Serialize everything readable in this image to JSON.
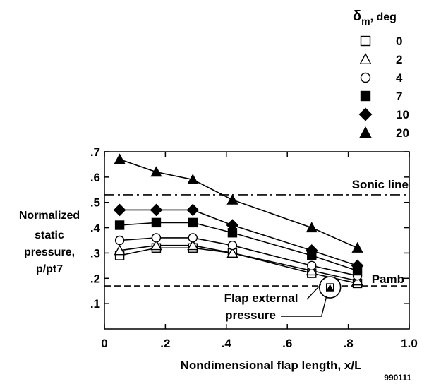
{
  "chart_data": {
    "type": "line",
    "title": "",
    "xlabel": "Nondimensional flap length, x/L",
    "ylabel_lines": [
      "Normalized",
      "static",
      "pressure,",
      "p/pt7"
    ],
    "xlim": [
      0,
      1.0
    ],
    "ylim": [
      0,
      0.7
    ],
    "x_ticks": [
      {
        "v": 0,
        "label": "0"
      },
      {
        "v": 0.2,
        "label": ".2"
      },
      {
        "v": 0.4,
        "label": ".4"
      },
      {
        "v": 0.6,
        "label": ".6"
      },
      {
        "v": 0.8,
        "label": ".8"
      },
      {
        "v": 1.0,
        "label": "1.0"
      }
    ],
    "y_ticks": [
      {
        "v": 0.1,
        "label": ".1"
      },
      {
        "v": 0.2,
        "label": ".2"
      },
      {
        "v": 0.3,
        "label": ".3"
      },
      {
        "v": 0.4,
        "label": ".4"
      },
      {
        "v": 0.5,
        "label": ".5"
      },
      {
        "v": 0.6,
        "label": ".6"
      },
      {
        "v": 0.7,
        "label": ".7"
      }
    ],
    "grid": false,
    "legend": {
      "placement": "top-right",
      "title_symbol": "δ",
      "title_subscript": "m",
      "title_suffix": ", deg"
    },
    "x": [
      0.05,
      0.17,
      0.29,
      0.42,
      0.68,
      0.83
    ],
    "series": [
      {
        "name": "0",
        "marker": "open-square",
        "values": [
          0.29,
          0.32,
          0.32,
          0.3,
          0.22,
          0.18
        ]
      },
      {
        "name": "2",
        "marker": "open-triangle",
        "values": [
          0.31,
          0.33,
          0.33,
          0.3,
          0.23,
          0.19
        ]
      },
      {
        "name": "4",
        "marker": "open-circle",
        "values": [
          0.35,
          0.36,
          0.36,
          0.33,
          0.25,
          0.21
        ]
      },
      {
        "name": "7",
        "marker": "filled-square",
        "values": [
          0.41,
          0.42,
          0.42,
          0.38,
          0.29,
          0.23
        ]
      },
      {
        "name": "10",
        "marker": "filled-diamond",
        "values": [
          0.47,
          0.47,
          0.47,
          0.41,
          0.31,
          0.25
        ]
      },
      {
        "name": "20",
        "marker": "filled-triangle",
        "values": [
          0.67,
          0.62,
          0.59,
          0.51,
          0.4,
          0.32
        ]
      }
    ],
    "reference_lines": [
      {
        "label": "Sonic line",
        "y": 0.53,
        "style": "dash-dot"
      },
      {
        "label": "Pamb",
        "y": 0.17,
        "style": "dashed"
      }
    ],
    "annotation": {
      "lines": [
        "Flap external",
        "pressure"
      ],
      "x": 0.74,
      "y": 0.17,
      "inner_markers": [
        "open-square",
        "filled-triangle"
      ]
    },
    "figure_id": "990111"
  }
}
